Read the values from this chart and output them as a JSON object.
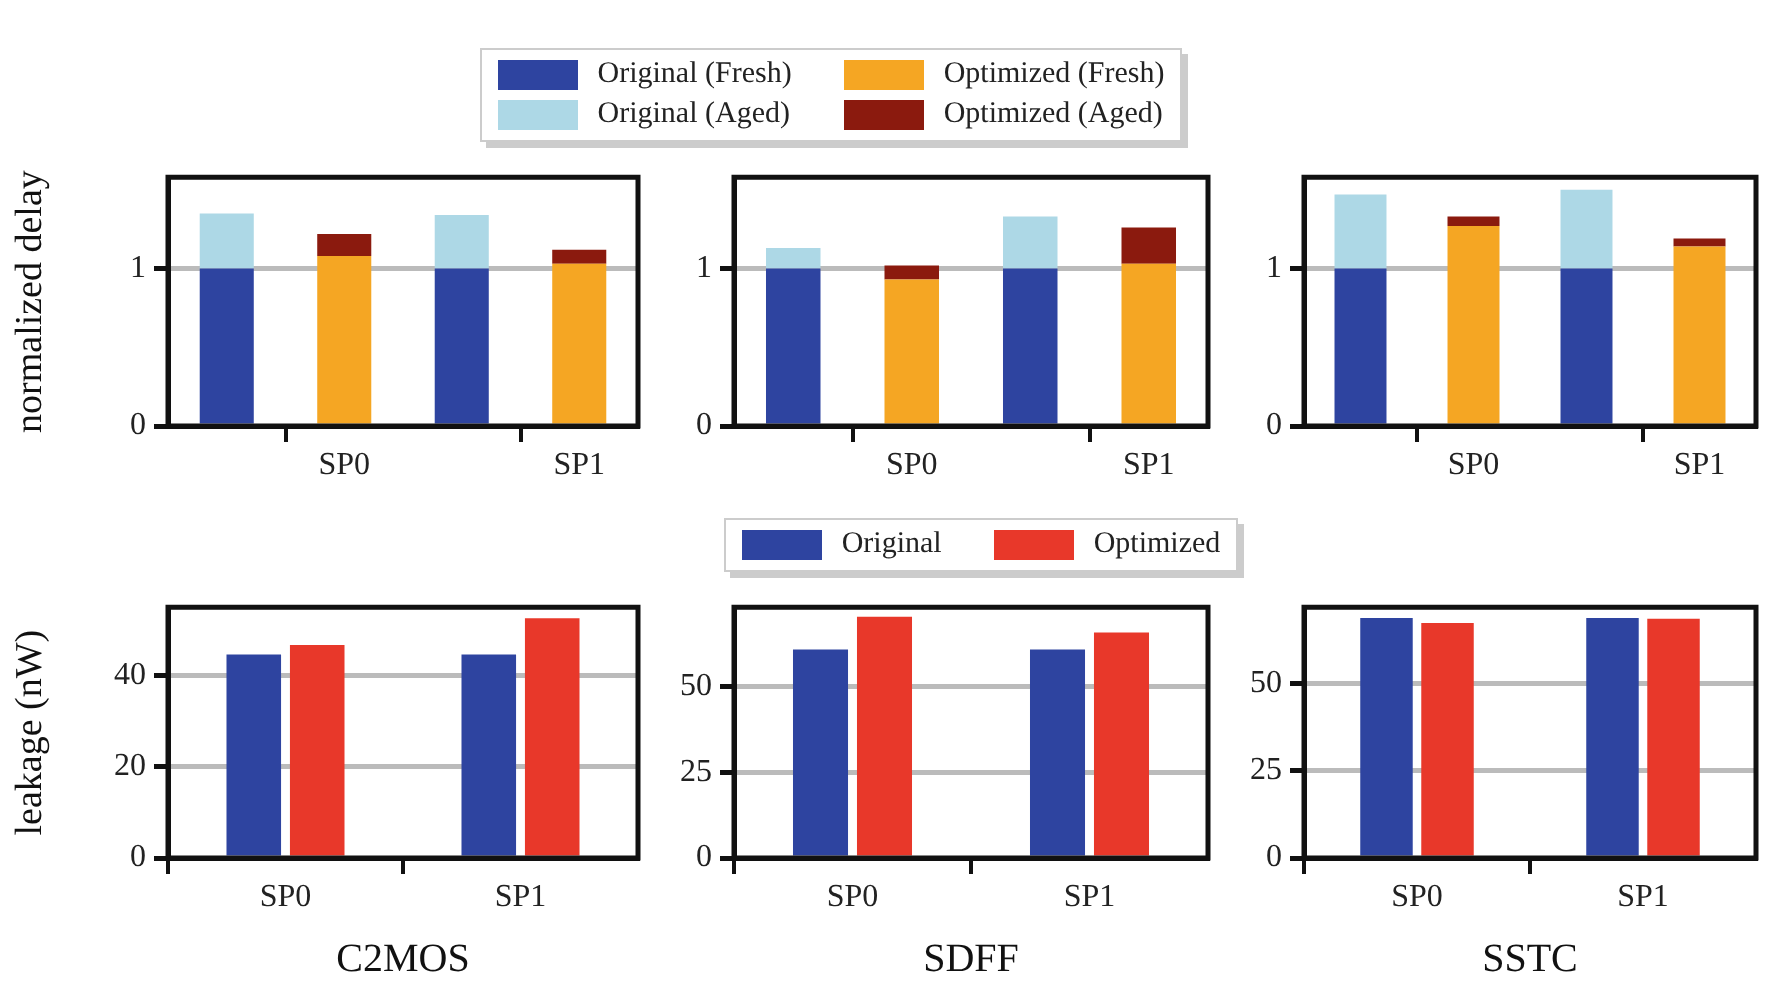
{
  "chart_data": [
    {
      "type": "bar",
      "stacked": true,
      "ylabel": "normalized delay",
      "categories": [
        null,
        "SP0",
        null,
        "SP1"
      ],
      "ylim": [
        0,
        1.58
      ],
      "yticks": [
        0,
        1
      ],
      "grid": "y",
      "legend": "top",
      "series": [
        {
          "name": "Original (Fresh)",
          "color": "#2e44a0",
          "values": [
            1,
            null,
            1,
            null
          ]
        },
        {
          "name": "Original (Aged)",
          "color": "#add8e6",
          "values": [
            0.35,
            null,
            0.34,
            null
          ]
        },
        {
          "name": "Optimized (Fresh)",
          "color": "#f5a623",
          "values": [
            null,
            1.08,
            null,
            1.03
          ]
        },
        {
          "name": "Optimized (Aged)",
          "color": "#8b1a0e",
          "values": [
            null,
            0.14,
            null,
            0.09
          ]
        }
      ]
    },
    {
      "type": "bar",
      "stacked": true,
      "categories": [
        null,
        "SP0",
        null,
        "SP1"
      ],
      "ylim": [
        0,
        1.58
      ],
      "yticks": [
        0,
        1
      ],
      "grid": "y",
      "series": [
        {
          "color": "#2e44a0",
          "values": [
            1,
            null,
            1,
            null
          ]
        },
        {
          "color": "#add8e6",
          "values": [
            0.13,
            null,
            0.33,
            null
          ]
        },
        {
          "color": "#f5a623",
          "values": [
            null,
            0.93,
            null,
            1.03
          ]
        },
        {
          "color": "#8b1a0e",
          "values": [
            null,
            0.09,
            null,
            0.23
          ]
        }
      ]
    },
    {
      "type": "bar",
      "stacked": true,
      "categories": [
        null,
        "SP0",
        null,
        "SP1"
      ],
      "ylim": [
        0,
        1.58
      ],
      "yticks": [
        0,
        1
      ],
      "grid": "y",
      "series": [
        {
          "color": "#2e44a0",
          "values": [
            1,
            null,
            1,
            null
          ]
        },
        {
          "color": "#add8e6",
          "values": [
            0.47,
            null,
            0.5,
            null
          ]
        },
        {
          "color": "#f5a623",
          "values": [
            null,
            1.27,
            null,
            1.14
          ]
        },
        {
          "color": "#8b1a0e",
          "values": [
            null,
            0.06,
            null,
            0.05
          ]
        }
      ]
    },
    {
      "type": "bar",
      "ylabel": "leakage (nW)",
      "xlabel": "C2MOS",
      "categories": [
        "SP0",
        "SP1"
      ],
      "ylim": [
        0,
        55
      ],
      "yticks": [
        0,
        20,
        40
      ],
      "grid": "y",
      "legend": "top",
      "series": [
        {
          "name": "Original",
          "color": "#2e44a0",
          "values": [
            44.6,
            44.6
          ]
        },
        {
          "name": "Optimized",
          "color": "#e8382a",
          "values": [
            46.7,
            52.6
          ]
        }
      ]
    },
    {
      "type": "bar",
      "xlabel": "SDFF",
      "categories": [
        "SP0",
        "SP1"
      ],
      "ylim": [
        0,
        73
      ],
      "yticks": [
        0,
        25,
        50
      ],
      "grid": "y",
      "series": [
        {
          "color": "#2e44a0",
          "values": [
            60.7,
            60.7
          ]
        },
        {
          "color": "#e8382a",
          "values": [
            70.2,
            65.6
          ]
        }
      ]
    },
    {
      "type": "bar",
      "xlabel": "SSTC",
      "categories": [
        "SP0",
        "SP1"
      ],
      "ylim": [
        0,
        72
      ],
      "yticks": [
        0,
        25,
        50
      ],
      "grid": "y",
      "series": [
        {
          "color": "#2e44a0",
          "values": [
            68.9,
            68.9
          ]
        },
        {
          "color": "#e8382a",
          "values": [
            67.5,
            68.7
          ]
        }
      ]
    }
  ]
}
